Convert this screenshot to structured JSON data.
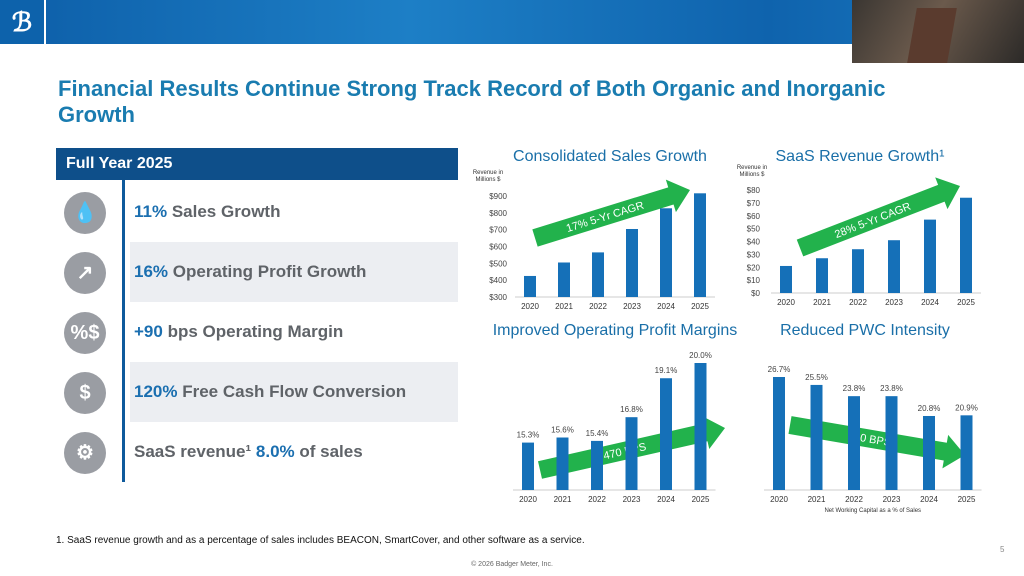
{
  "header": {
    "logo_text": "B"
  },
  "title": "Financial Results Continue Strong Track Record of Both Organic and Inorganic Growth",
  "panel": {
    "heading": "Full Year 2025",
    "rows": [
      {
        "icon": "water-drop-icon",
        "highlight": "11%",
        "text": " Sales Growth"
      },
      {
        "icon": "bar-chart-growth-icon",
        "highlight": "16%",
        "text": " Operating Profit Growth"
      },
      {
        "icon": "percent-dollar-icon",
        "highlight": "+90",
        "text": " bps Operating Margin"
      },
      {
        "icon": "dollar-cycle-icon",
        "highlight": "120%",
        "text": " Free Cash Flow Conversion"
      },
      {
        "icon": "monitor-gear-icon",
        "pre": "SaaS revenue¹ ",
        "highlight": "8.0%",
        "text": " of sales"
      }
    ]
  },
  "chart_data": [
    {
      "type": "bar",
      "title": "Consolidated Sales Growth",
      "ylabel": "Revenue in Millions $",
      "categories": [
        "2020",
        "2021",
        "2022",
        "2023",
        "2024",
        "2025"
      ],
      "values": [
        425,
        505,
        565,
        704,
        827,
        916
      ],
      "ylim": [
        300,
        900
      ],
      "yticks": [
        "$300",
        "$400",
        "$500",
        "$600",
        "$700",
        "$800",
        "$900"
      ],
      "annotation": "17% 5-Yr CAGR",
      "color": "#1570b8"
    },
    {
      "type": "bar",
      "title": "SaaS Revenue Growth¹",
      "ylabel": "Revenue in Millions $",
      "categories": [
        "2020",
        "2021",
        "2022",
        "2023",
        "2024",
        "2025"
      ],
      "values": [
        21,
        27,
        34,
        41,
        57,
        74
      ],
      "ylim": [
        0,
        80
      ],
      "yticks": [
        "$0",
        "$10",
        "$20",
        "$30",
        "$40",
        "$50",
        "$60",
        "$70",
        "$80"
      ],
      "annotation": "28% 5-Yr CAGR",
      "color": "#1570b8"
    },
    {
      "type": "bar",
      "title": "Improved Operating Profit Margins",
      "categories": [
        "2020",
        "2021",
        "2022",
        "2023",
        "2024",
        "2025"
      ],
      "values": [
        15.3,
        15.6,
        15.4,
        16.8,
        19.1,
        20.0
      ],
      "labels": [
        "15.3%",
        "15.6%",
        "15.4%",
        "16.8%",
        "19.1%",
        "20.0%"
      ],
      "ylim": [
        12.5,
        20
      ],
      "annotation": "470 BPS",
      "color": "#1570b8"
    },
    {
      "type": "bar",
      "title": "Reduced PWC Intensity",
      "xlabel": "Net Working Capital as a % of Sales",
      "categories": [
        "2020",
        "2021",
        "2022",
        "2023",
        "2024",
        "2025"
      ],
      "values": [
        26.7,
        25.5,
        23.8,
        23.8,
        20.8,
        20.9
      ],
      "labels": [
        "26.7%",
        "25.5%",
        "23.8%",
        "23.8%",
        "20.8%",
        "20.9%"
      ],
      "ylim": [
        9.6,
        26.7
      ],
      "annotation": "580 BPS",
      "color": "#1570b8"
    }
  ],
  "footnote": "1. SaaS revenue growth and as a percentage of sales includes BEACON, SmartCover, and other software as a service.",
  "copyright": "© 2026 Badger Meter, Inc.",
  "page_number": "5"
}
